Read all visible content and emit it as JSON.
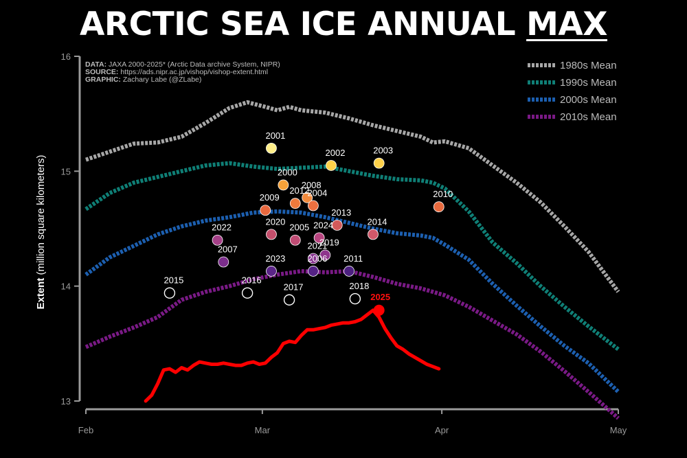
{
  "header": {
    "title_main": "ARCTIC SEA ICE ANNUAL ",
    "title_emph": "MAX"
  },
  "source": {
    "data_key": "DATA:",
    "data_text": " JAXA 2000-2025* (Arctic Data archive System, NIPR)",
    "source_key": "SOURCE:",
    "source_text": " https://ads.nipr.ac.jp/vishop/vishop-extent.html",
    "graphic_key": "GRAPHIC:",
    "graphic_text": " Zachary Labe (@ZLabe)"
  },
  "colors": {
    "background": "#000000",
    "axis": "#9a9a9a",
    "mean_1980s": "#a7a7a7",
    "mean_1990s": "#0f7f76",
    "mean_2000s": "#1c5fb0",
    "mean_2010s": "#7a1a86",
    "current": "#ff0000"
  },
  "chart_data": {
    "type": "line",
    "title": "ARCTIC SEA ICE ANNUAL MAX",
    "ylabel_bold": "Extent",
    "ylabel_rest": " (million square kilometers)",
    "ylim": [
      13,
      16
    ],
    "yticks": [
      "13",
      "14",
      "15",
      "16"
    ],
    "xlim": [
      0,
      89
    ],
    "xticks": [
      {
        "label": "Feb",
        "day": 0
      },
      {
        "label": "Mar",
        "day": 29.5
      },
      {
        "label": "Apr",
        "day": 59.5
      },
      {
        "label": "May",
        "day": 89
      }
    ],
    "series": [
      {
        "name": "1980s Mean",
        "color": "#a7a7a7",
        "days": [
          0,
          4,
          8,
          12,
          16,
          20,
          24,
          27,
          30,
          32,
          34,
          36,
          40,
          44,
          48,
          52,
          56,
          58,
          60,
          64,
          68,
          72,
          76,
          80,
          84,
          89
        ],
        "values": [
          15.1,
          15.17,
          15.24,
          15.25,
          15.3,
          15.42,
          15.55,
          15.6,
          15.56,
          15.53,
          15.56,
          15.53,
          15.51,
          15.46,
          15.4,
          15.35,
          15.3,
          15.25,
          15.26,
          15.2,
          15.05,
          14.9,
          14.73,
          14.52,
          14.3,
          13.95
        ]
      },
      {
        "name": "1990s Mean",
        "color": "#0f7f76",
        "days": [
          0,
          4,
          8,
          12,
          16,
          20,
          24,
          28,
          32,
          36,
          40,
          44,
          48,
          52,
          56,
          58,
          60,
          64,
          68,
          72,
          76,
          80,
          84,
          89
        ],
        "values": [
          14.67,
          14.81,
          14.9,
          14.95,
          15.0,
          15.05,
          15.07,
          15.04,
          15.02,
          15.03,
          15.04,
          15.0,
          14.96,
          14.93,
          14.92,
          14.9,
          14.85,
          14.65,
          14.38,
          14.2,
          14.0,
          13.82,
          13.65,
          13.45
        ]
      },
      {
        "name": "2000s Mean",
        "color": "#1c5fb0",
        "days": [
          0,
          4,
          8,
          12,
          16,
          20,
          24,
          28,
          32,
          36,
          40,
          44,
          48,
          52,
          56,
          58,
          60,
          64,
          68,
          72,
          76,
          80,
          84,
          89
        ],
        "values": [
          14.1,
          14.25,
          14.35,
          14.45,
          14.52,
          14.57,
          14.6,
          14.64,
          14.65,
          14.64,
          14.6,
          14.55,
          14.5,
          14.46,
          14.44,
          14.42,
          14.36,
          14.23,
          14.02,
          13.83,
          13.65,
          13.48,
          13.33,
          13.08
        ]
      },
      {
        "name": "2010s Mean",
        "color": "#7a1a86",
        "days": [
          0,
          4,
          8,
          12,
          16,
          20,
          24,
          28,
          32,
          36,
          40,
          44,
          48,
          52,
          56,
          58,
          60,
          64,
          68,
          72,
          76,
          80,
          84,
          89
        ],
        "values": [
          13.47,
          13.56,
          13.64,
          13.73,
          13.88,
          13.95,
          14.0,
          14.06,
          14.1,
          14.13,
          14.12,
          14.13,
          14.08,
          14.02,
          13.98,
          13.95,
          13.92,
          13.82,
          13.7,
          13.58,
          13.43,
          13.26,
          13.08,
          12.85
        ]
      }
    ],
    "current": {
      "name": "2025",
      "color": "#ff0000",
      "days": [
        10,
        11,
        12,
        13,
        14,
        15,
        16,
        17,
        18,
        19,
        20,
        21,
        22,
        23,
        24,
        25,
        26,
        27,
        28,
        29,
        30,
        31,
        32,
        33,
        34,
        35,
        36,
        37,
        38,
        39,
        40,
        41,
        42,
        43,
        44,
        45,
        46,
        47,
        48,
        49,
        50,
        51,
        52,
        53,
        54,
        55,
        56,
        57,
        58,
        59
      ],
      "values": [
        13.0,
        13.05,
        13.15,
        13.27,
        13.28,
        13.25,
        13.29,
        13.27,
        13.31,
        13.34,
        13.33,
        13.32,
        13.32,
        13.33,
        13.32,
        13.31,
        13.31,
        13.33,
        13.34,
        13.32,
        13.33,
        13.38,
        13.42,
        13.5,
        13.52,
        13.51,
        13.57,
        13.62,
        13.62,
        13.63,
        13.64,
        13.66,
        13.67,
        13.68,
        13.68,
        13.69,
        13.71,
        13.75,
        13.79,
        13.73,
        13.63,
        13.55,
        13.48,
        13.45,
        13.41,
        13.38,
        13.35,
        13.32,
        13.3,
        13.28
      ],
      "max_day": 49,
      "max_value": 13.79
    },
    "annual_max": [
      {
        "year": "2001",
        "day": 31,
        "value": 15.2,
        "color": "#ffee88"
      },
      {
        "year": "2002",
        "day": 41,
        "value": 15.05,
        "color": "#ffd24a"
      },
      {
        "year": "2003",
        "day": 49,
        "value": 15.07,
        "color": "#ffd24a"
      },
      {
        "year": "2000",
        "day": 33,
        "value": 14.88,
        "color": "#f6a23a"
      },
      {
        "year": "2008",
        "day": 37,
        "value": 14.77,
        "color": "#f28a3c"
      },
      {
        "year": "2012",
        "day": 35,
        "value": 14.72,
        "color": "#ee7a3c"
      },
      {
        "year": "2004",
        "day": 38,
        "value": 14.7,
        "color": "#ec7040"
      },
      {
        "year": "2009",
        "day": 30,
        "value": 14.66,
        "color": "#e8683e"
      },
      {
        "year": "2010",
        "day": 59,
        "value": 14.69,
        "color": "#e86a3e"
      },
      {
        "year": "2013",
        "day": 42,
        "value": 14.53,
        "color": "#d35a5a"
      },
      {
        "year": "2014",
        "day": 48,
        "value": 14.45,
        "color": "#d0586a"
      },
      {
        "year": "2020",
        "day": 31,
        "value": 14.45,
        "color": "#c44f6c"
      },
      {
        "year": "2005",
        "day": 35,
        "value": 14.4,
        "color": "#c04c74"
      },
      {
        "year": "2024",
        "day": 39,
        "value": 14.42,
        "color": "#b84580"
      },
      {
        "year": "2022",
        "day": 22,
        "value": 14.4,
        "color": "#a54088"
      },
      {
        "year": "2019",
        "day": 40,
        "value": 14.27,
        "color": "#8e358c"
      },
      {
        "year": "2021",
        "day": 38,
        "value": 14.24,
        "color": "#86328e"
      },
      {
        "year": "2007",
        "day": 23,
        "value": 14.21,
        "color": "#7c2e8c"
      },
      {
        "year": "2023",
        "day": 31,
        "value": 14.13,
        "color": "#5c2588"
      },
      {
        "year": "2006",
        "day": 38,
        "value": 14.13,
        "color": "#552286"
      },
      {
        "year": "2011",
        "day": 44,
        "value": 14.13,
        "color": "#4c2080"
      },
      {
        "year": "2015",
        "day": 14,
        "value": 13.94,
        "color": "#000000"
      },
      {
        "year": "2016",
        "day": 27,
        "value": 13.94,
        "color": "#000000"
      },
      {
        "year": "2017",
        "day": 34,
        "value": 13.88,
        "color": "#000000"
      },
      {
        "year": "2018",
        "day": 45,
        "value": 13.89,
        "color": "#000000"
      }
    ]
  }
}
